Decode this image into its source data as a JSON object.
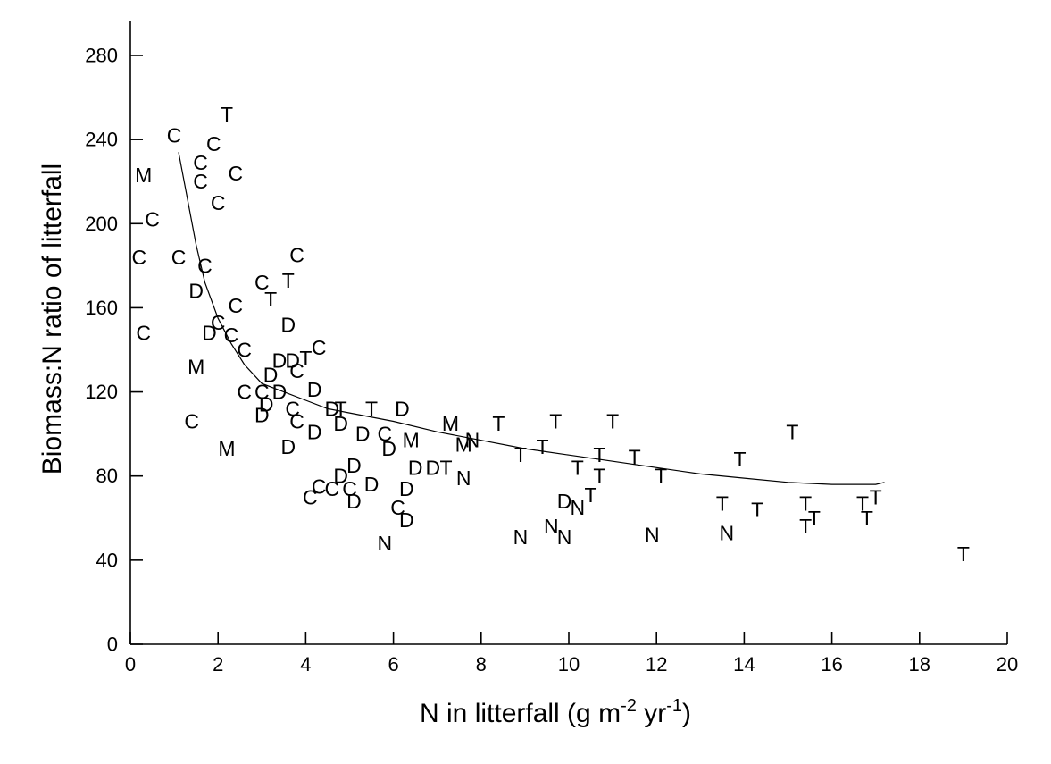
{
  "chart_data": {
    "type": "scatter",
    "xlabel": {
      "main": "N in litterfall (g m",
      "exp1": "-2",
      "mid": " yr",
      "exp2": "-1",
      "end": ")"
    },
    "ylabel": "Biomass:N ratio of litterfall",
    "xlim": [
      0,
      20
    ],
    "ylim": [
      0,
      280
    ],
    "xticks": [
      0,
      2,
      4,
      6,
      8,
      10,
      12,
      14,
      16,
      18,
      20
    ],
    "yticks": [
      0,
      40,
      80,
      120,
      160,
      200,
      240,
      280
    ],
    "grid": false,
    "points": [
      {
        "x": 1.0,
        "y": 242,
        "label": "C"
      },
      {
        "x": 2.2,
        "y": 252,
        "label": "T"
      },
      {
        "x": 1.9,
        "y": 238,
        "label": "C"
      },
      {
        "x": 1.6,
        "y": 229,
        "label": "C"
      },
      {
        "x": 0.3,
        "y": 223,
        "label": "M"
      },
      {
        "x": 1.6,
        "y": 220,
        "label": "C"
      },
      {
        "x": 2.4,
        "y": 224,
        "label": "C"
      },
      {
        "x": 2.0,
        "y": 210,
        "label": "C"
      },
      {
        "x": 0.5,
        "y": 202,
        "label": "C"
      },
      {
        "x": 0.2,
        "y": 184,
        "label": "C"
      },
      {
        "x": 1.1,
        "y": 184,
        "label": "C"
      },
      {
        "x": 1.7,
        "y": 180,
        "label": "C"
      },
      {
        "x": 3.8,
        "y": 185,
        "label": "C"
      },
      {
        "x": 3.0,
        "y": 172,
        "label": "C"
      },
      {
        "x": 3.6,
        "y": 173,
        "label": "T"
      },
      {
        "x": 1.5,
        "y": 168,
        "label": "D"
      },
      {
        "x": 3.2,
        "y": 164,
        "label": "T"
      },
      {
        "x": 2.4,
        "y": 161,
        "label": "C"
      },
      {
        "x": 2.0,
        "y": 153,
        "label": "C"
      },
      {
        "x": 3.6,
        "y": 152,
        "label": "D"
      },
      {
        "x": 0.3,
        "y": 148,
        "label": "C"
      },
      {
        "x": 1.8,
        "y": 148,
        "label": "D"
      },
      {
        "x": 2.3,
        "y": 147,
        "label": "C"
      },
      {
        "x": 2.6,
        "y": 140,
        "label": "C"
      },
      {
        "x": 4.3,
        "y": 141,
        "label": "C"
      },
      {
        "x": 4.0,
        "y": 136,
        "label": "T"
      },
      {
        "x": 3.4,
        "y": 135,
        "label": "D"
      },
      {
        "x": 3.7,
        "y": 135,
        "label": "D"
      },
      {
        "x": 1.5,
        "y": 132,
        "label": "M"
      },
      {
        "x": 3.8,
        "y": 130,
        "label": "C"
      },
      {
        "x": 3.2,
        "y": 128,
        "label": "D"
      },
      {
        "x": 2.6,
        "y": 120,
        "label": "C"
      },
      {
        "x": 3.0,
        "y": 120,
        "label": "C"
      },
      {
        "x": 3.4,
        "y": 120,
        "label": "D"
      },
      {
        "x": 4.2,
        "y": 121,
        "label": "D"
      },
      {
        "x": 3.1,
        "y": 114,
        "label": "D"
      },
      {
        "x": 3.0,
        "y": 109,
        "label": "D"
      },
      {
        "x": 3.7,
        "y": 112,
        "label": "C"
      },
      {
        "x": 4.6,
        "y": 112,
        "label": "D"
      },
      {
        "x": 4.8,
        "y": 112,
        "label": "T"
      },
      {
        "x": 5.5,
        "y": 112,
        "label": "T"
      },
      {
        "x": 6.2,
        "y": 112,
        "label": "D"
      },
      {
        "x": 1.4,
        "y": 106,
        "label": "C"
      },
      {
        "x": 3.8,
        "y": 106,
        "label": "C"
      },
      {
        "x": 4.8,
        "y": 105,
        "label": "D"
      },
      {
        "x": 7.3,
        "y": 105,
        "label": "M"
      },
      {
        "x": 8.4,
        "y": 105,
        "label": "T"
      },
      {
        "x": 9.7,
        "y": 106,
        "label": "T"
      },
      {
        "x": 11.0,
        "y": 106,
        "label": "T"
      },
      {
        "x": 4.2,
        "y": 101,
        "label": "D"
      },
      {
        "x": 5.3,
        "y": 100,
        "label": "D"
      },
      {
        "x": 5.8,
        "y": 100,
        "label": "C"
      },
      {
        "x": 15.1,
        "y": 101,
        "label": "T"
      },
      {
        "x": 6.4,
        "y": 97,
        "label": "M"
      },
      {
        "x": 7.8,
        "y": 97,
        "label": "N"
      },
      {
        "x": 2.2,
        "y": 93,
        "label": "M"
      },
      {
        "x": 3.6,
        "y": 94,
        "label": "D"
      },
      {
        "x": 5.9,
        "y": 93,
        "label": "D"
      },
      {
        "x": 7.6,
        "y": 95,
        "label": "M"
      },
      {
        "x": 9.4,
        "y": 94,
        "label": "T"
      },
      {
        "x": 8.9,
        "y": 90,
        "label": "T"
      },
      {
        "x": 10.7,
        "y": 90,
        "label": "T"
      },
      {
        "x": 11.5,
        "y": 89,
        "label": "T"
      },
      {
        "x": 13.9,
        "y": 88,
        "label": "T"
      },
      {
        "x": 5.1,
        "y": 85,
        "label": "D"
      },
      {
        "x": 6.5,
        "y": 84,
        "label": "D"
      },
      {
        "x": 6.9,
        "y": 84,
        "label": "D"
      },
      {
        "x": 7.2,
        "y": 84,
        "label": "T"
      },
      {
        "x": 10.2,
        "y": 84,
        "label": "T"
      },
      {
        "x": 4.8,
        "y": 80,
        "label": "D"
      },
      {
        "x": 7.6,
        "y": 79,
        "label": "N"
      },
      {
        "x": 10.7,
        "y": 80,
        "label": "T"
      },
      {
        "x": 12.1,
        "y": 80,
        "label": "T"
      },
      {
        "x": 4.3,
        "y": 75,
        "label": "C"
      },
      {
        "x": 4.6,
        "y": 74,
        "label": "C"
      },
      {
        "x": 5.0,
        "y": 74,
        "label": "C"
      },
      {
        "x": 5.5,
        "y": 76,
        "label": "D"
      },
      {
        "x": 6.3,
        "y": 74,
        "label": "D"
      },
      {
        "x": 4.1,
        "y": 70,
        "label": "C"
      },
      {
        "x": 5.1,
        "y": 68,
        "label": "D"
      },
      {
        "x": 10.5,
        "y": 71,
        "label": "T"
      },
      {
        "x": 9.9,
        "y": 68,
        "label": "D"
      },
      {
        "x": 10.2,
        "y": 65,
        "label": "N"
      },
      {
        "x": 13.5,
        "y": 67,
        "label": "T"
      },
      {
        "x": 15.4,
        "y": 67,
        "label": "T"
      },
      {
        "x": 16.7,
        "y": 67,
        "label": "T"
      },
      {
        "x": 17.0,
        "y": 70,
        "label": "T"
      },
      {
        "x": 6.1,
        "y": 65,
        "label": "C"
      },
      {
        "x": 14.3,
        "y": 64,
        "label": "T"
      },
      {
        "x": 6.3,
        "y": 59,
        "label": "D"
      },
      {
        "x": 15.6,
        "y": 60,
        "label": "T"
      },
      {
        "x": 16.8,
        "y": 60,
        "label": "T"
      },
      {
        "x": 9.6,
        "y": 56,
        "label": "N"
      },
      {
        "x": 15.4,
        "y": 56,
        "label": "T"
      },
      {
        "x": 8.9,
        "y": 51,
        "label": "N"
      },
      {
        "x": 9.9,
        "y": 51,
        "label": "N"
      },
      {
        "x": 11.9,
        "y": 52,
        "label": "N"
      },
      {
        "x": 13.6,
        "y": 53,
        "label": "N"
      },
      {
        "x": 5.8,
        "y": 48,
        "label": "N"
      },
      {
        "x": 19.0,
        "y": 43,
        "label": "T"
      }
    ],
    "fit_curve": {
      "x": [
        1.1,
        1.3,
        1.5,
        1.7,
        2.0,
        2.3,
        2.6,
        3.0,
        3.5,
        4.0,
        4.5,
        5.0,
        6.0,
        7.0,
        8.0,
        9.0,
        10.0,
        11.0,
        12.0,
        13.0,
        14.0,
        15.0,
        16.0,
        17.0,
        17.2
      ],
      "y": [
        234,
        212,
        190,
        172,
        155,
        143,
        133,
        124,
        120,
        116,
        112,
        110,
        106,
        101,
        97,
        93,
        90,
        87,
        84,
        81,
        79,
        77,
        76,
        76,
        77
      ]
    }
  }
}
